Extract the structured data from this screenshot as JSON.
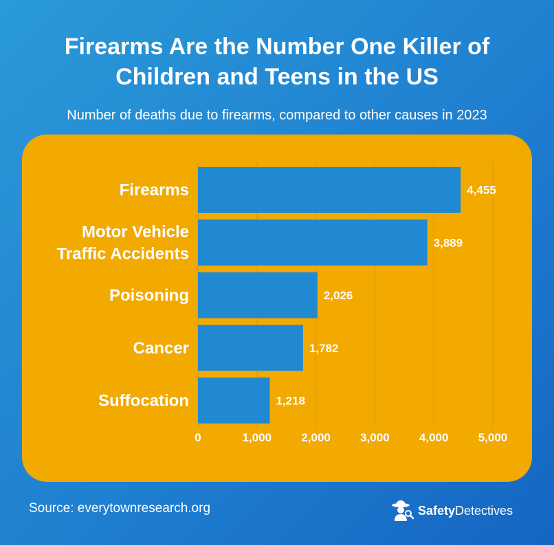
{
  "header": {
    "title_line1": "Firearms Are the Number One Killer of",
    "title_line2": "Children and Teens in the US",
    "subtitle": "Number of deaths due to firearms, compared to other causes in 2023"
  },
  "footer": {
    "source": "Source: everytownresearch.org",
    "brand_bold": "Safety",
    "brand_regular": "Detectives"
  },
  "colors": {
    "background": "#1f7fd0",
    "panel": "#f2a900",
    "bar": "#2189d2",
    "text": "#ffffff"
  },
  "chart_data": {
    "type": "bar",
    "orientation": "horizontal",
    "title": "Firearms Are the Number One Killer of Children and Teens in the US",
    "subtitle": "Number of deaths due to firearms, compared to other causes in 2023",
    "categories": [
      [
        "Firearms"
      ],
      [
        "Motor Vehicle",
        "Traffic Accidents"
      ],
      [
        "Poisoning"
      ],
      [
        "Cancer"
      ],
      [
        "Suffocation"
      ]
    ],
    "values": [
      4455,
      3889,
      2026,
      1782,
      1218
    ],
    "value_labels": [
      "4,455",
      "3,889",
      "2,026",
      "1,782",
      "1,218"
    ],
    "xticks": [
      0,
      1000,
      2000,
      3000,
      4000,
      5000
    ],
    "xtick_labels": [
      "0",
      "1,000",
      "2,000",
      "3,000",
      "4,000",
      "5,000"
    ],
    "xlim": [
      0,
      5000
    ],
    "grid": "vertical",
    "xlabel": "",
    "ylabel": ""
  }
}
